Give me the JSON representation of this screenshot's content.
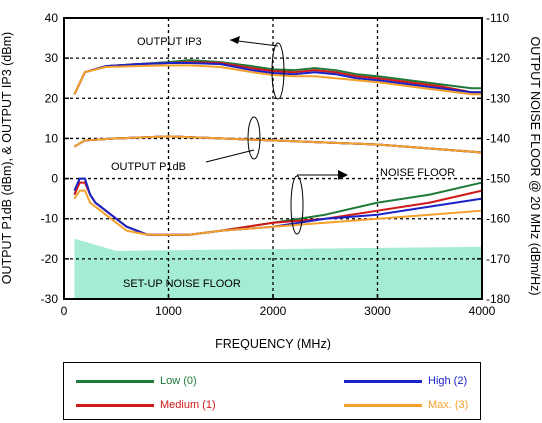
{
  "chart_data": {
    "type": "line",
    "xlabel": "FREQUENCY (MHz)",
    "ylabel_left": "OUTPUT P1dB (dBm), & OUTPUT IP3 (dBm)",
    "ylabel_right": "OUTPUT NOISE FLOOR @ 20 MHz (dBm/Hz)",
    "xlim": [
      0,
      4000
    ],
    "ylim_left": [
      -30,
      40
    ],
    "ylim_right": [
      -180,
      -110
    ],
    "xticks": [
      "0",
      "1000",
      "2000",
      "3000",
      "4000"
    ],
    "yticks_left": [
      "40",
      "30",
      "20",
      "10",
      "0",
      "-10",
      "-20",
      "-30"
    ],
    "yticks_right": [
      "-110",
      "-120",
      "-130",
      "-140",
      "-150",
      "-160",
      "-170",
      "-180"
    ],
    "grid": "dashed",
    "annotations": {
      "ip3": "OUTPUT IP3",
      "p1db": "OUTPUT P1dB",
      "noise": "NOISE FLOOR",
      "setup": "SET-UP NOISE FLOOR"
    },
    "setup_noise_floor": {
      "x": [
        100,
        500,
        4000
      ],
      "y_top_left_axis": [
        -15,
        -18,
        -17
      ],
      "fill_color": "#a4ecd2"
    },
    "series": [
      {
        "name": "Low (0)",
        "color": "#1f7a3a",
        "ip3": {
          "x": [
            100,
            200,
            400,
            700,
            1000,
            1200,
            1500,
            1800,
            2000,
            2200,
            2400,
            2600,
            2800,
            3000,
            3300,
            3600,
            3900,
            4000
          ],
          "y": [
            21,
            26.5,
            28,
            28.5,
            29,
            29.5,
            29,
            28,
            27.2,
            27,
            27.5,
            27,
            26,
            25.5,
            24.5,
            23.5,
            22.5,
            22.5
          ]
        },
        "p1db": {
          "x": [
            100,
            200,
            500,
            1000,
            1500,
            2000,
            2500,
            3000,
            3500,
            4000
          ],
          "y": [
            8,
            9.5,
            10,
            10.5,
            10,
            9.5,
            9,
            8.5,
            7.5,
            6.5
          ]
        },
        "noise": {
          "x": [
            100,
            150,
            200,
            250,
            300,
            400,
            600,
            800,
            1000,
            1200,
            1500,
            2000,
            2500,
            3000,
            3500,
            4000
          ],
          "y": [
            -154,
            -150,
            -150,
            -154,
            -156,
            -158,
            -162,
            -164,
            -164,
            -164,
            -163,
            -161,
            -159,
            -156,
            -154,
            -151
          ]
        }
      },
      {
        "name": "Medium (1)",
        "color": "#d01818",
        "ip3": {
          "x": [
            100,
            200,
            400,
            700,
            1000,
            1200,
            1500,
            1800,
            2000,
            2200,
            2400,
            2600,
            2800,
            3000,
            3300,
            3600,
            3900,
            4000
          ],
          "y": [
            21,
            26.5,
            28,
            28.5,
            28.8,
            29,
            28.8,
            27.5,
            26.8,
            26.5,
            27,
            26.5,
            25.5,
            25,
            24,
            23,
            21.5,
            21.5
          ]
        },
        "p1db": {
          "x": [
            100,
            200,
            500,
            1000,
            1500,
            2000,
            2500,
            3000,
            3500,
            4000
          ],
          "y": [
            8,
            9.5,
            10,
            10.5,
            10,
            9.5,
            9,
            8.5,
            7.5,
            6.5
          ]
        },
        "noise": {
          "x": [
            100,
            150,
            200,
            250,
            300,
            400,
            600,
            800,
            1000,
            1200,
            1500,
            2000,
            2500,
            3000,
            3500,
            4000
          ],
          "y": [
            -154,
            -151,
            -151,
            -154,
            -156,
            -158,
            -162,
            -164,
            -164,
            -164,
            -163,
            -161,
            -160,
            -158,
            -156,
            -153
          ]
        }
      },
      {
        "name": "High (2)",
        "color": "#1a22c8",
        "ip3": {
          "x": [
            100,
            200,
            400,
            700,
            1000,
            1200,
            1500,
            1800,
            2000,
            2200,
            2400,
            2600,
            2800,
            3000,
            3300,
            3600,
            3900,
            4000
          ],
          "y": [
            21,
            26.5,
            28,
            28.5,
            28.8,
            28.8,
            28.5,
            27,
            26.3,
            26,
            26.5,
            26,
            25,
            24.5,
            23.5,
            22.5,
            21.5,
            21.5
          ]
        },
        "p1db": {
          "x": [
            100,
            200,
            500,
            1000,
            1500,
            2000,
            2500,
            3000,
            3500,
            4000
          ],
          "y": [
            8,
            9.5,
            10,
            10.5,
            10,
            9.5,
            9,
            8.5,
            7.5,
            6.5
          ]
        },
        "noise": {
          "x": [
            100,
            150,
            200,
            250,
            300,
            400,
            600,
            800,
            1000,
            1200,
            1500,
            2000,
            2500,
            3000,
            3500,
            4000
          ],
          "y": [
            -153,
            -150,
            -150,
            -154,
            -156,
            -158,
            -162,
            -164,
            -164,
            -164,
            -163,
            -162,
            -160,
            -159,
            -157,
            -155
          ]
        }
      },
      {
        "name": "Max. (3)",
        "color": "#f5a02a",
        "ip3": {
          "x": [
            100,
            200,
            400,
            700,
            1000,
            1200,
            1500,
            1800,
            2000,
            2200,
            2400,
            2600,
            2800,
            3000,
            3300,
            3600,
            3900,
            4000
          ],
          "y": [
            21,
            26.5,
            27.8,
            28,
            28.2,
            28.2,
            27.8,
            26.5,
            25.8,
            25.5,
            25.5,
            25,
            24.5,
            24,
            23,
            22,
            21,
            21
          ]
        },
        "p1db": {
          "x": [
            100,
            200,
            500,
            1000,
            1500,
            2000,
            2500,
            3000,
            3500,
            4000
          ],
          "y": [
            8,
            9.5,
            10,
            10.5,
            10,
            9.5,
            9,
            8.5,
            7.5,
            6.5
          ]
        },
        "noise": {
          "x": [
            100,
            150,
            200,
            250,
            300,
            400,
            600,
            800,
            1000,
            1200,
            1500,
            2000,
            2500,
            3000,
            3500,
            4000
          ],
          "y": [
            -155,
            -153,
            -153,
            -156,
            -157,
            -159,
            -163,
            -164,
            -164,
            -164,
            -163,
            -162,
            -161,
            -160,
            -159,
            -158
          ]
        }
      }
    ]
  }
}
